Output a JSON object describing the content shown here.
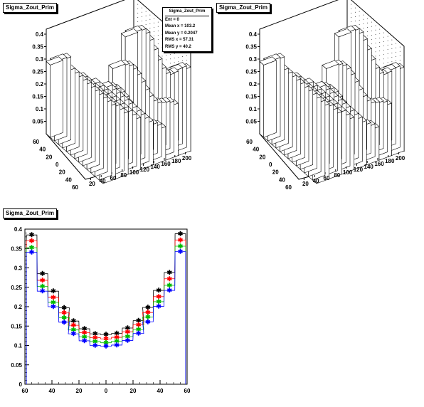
{
  "panels": [
    {
      "title": "Sigma_Zout_Prim"
    },
    {
      "title": "Sigma_Zout_Prim"
    },
    {
      "title": "Sigma_Zout_Prim"
    }
  ],
  "stats": {
    "title": "Sigma_Zout_Prim",
    "lines": [
      "Ent = 0",
      "Mean x = 103.2",
      "Mean y = 0.2047",
      "RMS x = 57.31",
      "RMS y = 40.2"
    ]
  },
  "chart_data": [
    {
      "type": "lego3d",
      "x_axis_ticks": [
        20,
        40,
        60,
        80,
        100,
        120,
        140,
        160,
        180,
        200
      ],
      "y_axis_ticks": [
        60,
        40,
        20,
        0,
        20,
        40,
        60
      ],
      "z_axis_ticks": [
        "0.4",
        "0.35",
        "0.3",
        "0.25",
        "0.2",
        "0.15",
        "0.1",
        "0.05"
      ]
    },
    {
      "type": "lego3d",
      "x_axis_ticks": [
        20,
        40,
        60,
        80,
        100,
        120,
        140,
        160,
        180,
        200
      ],
      "y_axis_ticks": [
        60,
        40,
        20,
        0,
        20,
        40,
        60
      ],
      "z_axis_ticks": [
        "0.4",
        "0.35",
        "0.3",
        "0.25",
        "0.2",
        "0.15",
        "0.1",
        "0.05"
      ]
    },
    {
      "type": "line",
      "x_ticks": [
        60,
        40,
        20,
        0,
        20,
        40,
        60
      ],
      "y_ticks": [
        "0",
        "0.05",
        "0.1",
        "0.15",
        "0.2",
        "0.25",
        "0.3",
        "0.35",
        "0.4"
      ],
      "xlim": [
        -60,
        60
      ],
      "ylim": [
        0,
        0.4
      ],
      "x": [
        -55,
        -47,
        -39,
        -31,
        -24,
        -16,
        -8,
        0,
        8,
        16,
        24,
        31,
        39,
        47,
        55
      ],
      "series": [
        {
          "color": "#000000",
          "values": [
            0.385,
            0.285,
            0.24,
            0.197,
            0.163,
            0.143,
            0.13,
            0.128,
            0.131,
            0.145,
            0.164,
            0.198,
            0.242,
            0.288,
            0.388
          ]
        },
        {
          "color": "#ff0000",
          "values": [
            0.37,
            0.268,
            0.224,
            0.184,
            0.152,
            0.133,
            0.12,
            0.117,
            0.121,
            0.135,
            0.153,
            0.185,
            0.226,
            0.272,
            0.372
          ]
        },
        {
          "color": "#00bb00",
          "values": [
            0.352,
            0.252,
            0.211,
            0.172,
            0.14,
            0.122,
            0.11,
            0.107,
            0.111,
            0.123,
            0.141,
            0.173,
            0.213,
            0.255,
            0.356
          ]
        },
        {
          "color": "#0000ff",
          "values": [
            0.34,
            0.24,
            0.2,
            0.16,
            0.13,
            0.112,
            0.1,
            0.098,
            0.101,
            0.113,
            0.131,
            0.161,
            0.201,
            0.242,
            0.342
          ]
        }
      ]
    }
  ]
}
